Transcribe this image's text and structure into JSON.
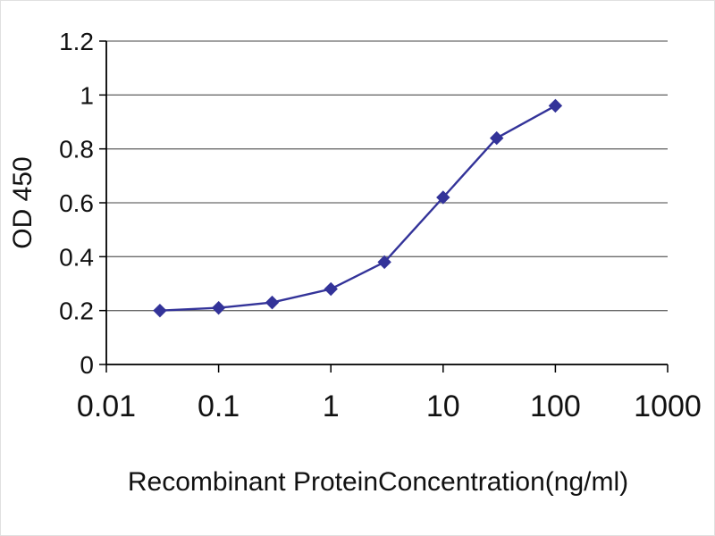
{
  "chart_data": {
    "type": "line",
    "title": "",
    "xlabel": "Recombinant ProteinConcentration(ng/ml)",
    "ylabel": "OD 450",
    "xscale": "log",
    "xlim": [
      0.01,
      1000
    ],
    "ylim": [
      0,
      1.2
    ],
    "xticks": [
      0.01,
      0.1,
      1,
      10,
      100,
      1000
    ],
    "xtick_labels": [
      "0.01",
      "0.1",
      "1",
      "10",
      "100",
      "1000"
    ],
    "yticks": [
      0,
      0.2,
      0.4,
      0.6,
      0.8,
      1,
      1.2
    ],
    "ytick_labels": [
      "0",
      "0.2",
      "0.4",
      "0.6",
      "0.8",
      "1",
      "1.2"
    ],
    "grid": "horizontal",
    "legend": "none",
    "x": [
      0.03,
      0.1,
      0.3,
      1,
      3,
      10,
      30,
      100
    ],
    "series": [
      {
        "name": "OD 450",
        "values": [
          0.2,
          0.21,
          0.23,
          0.28,
          0.38,
          0.62,
          0.84,
          0.96
        ]
      }
    ],
    "marker": "diamond",
    "line_color": "#333399",
    "marker_color": "#333399",
    "grid_color": "#6b6b6b",
    "axis_color": "#000000"
  }
}
